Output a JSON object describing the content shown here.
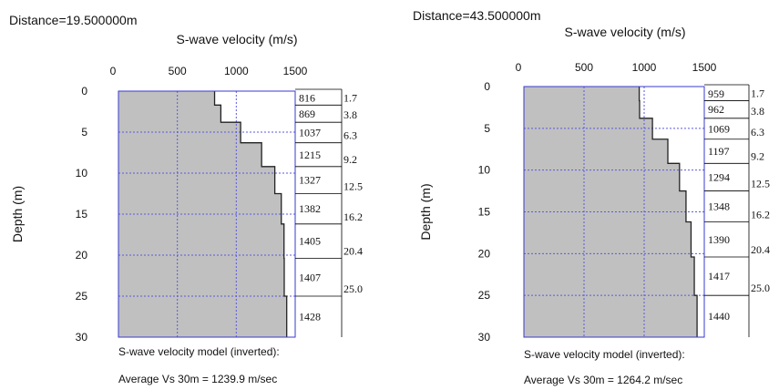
{
  "chart_data": [
    {
      "type": "step",
      "distance_label": "Distance=19.500000m",
      "title": "S-wave velocity (m/s)",
      "ylabel": "Depth (m)",
      "xlim": [
        0,
        1500
      ],
      "ylim": [
        0,
        30
      ],
      "x_ticks": [
        "0",
        "500",
        "1000",
        "1500"
      ],
      "y_ticks": [
        "0",
        "5",
        "10",
        "15",
        "20",
        "25",
        "30"
      ],
      "grid": true,
      "fill_color": "#c0c0c0",
      "axis_color": "#3a3ad0",
      "grid_color": "#5a5ae0",
      "layers": [
        {
          "top": 0.0,
          "bottom": 1.7,
          "vs": 816
        },
        {
          "top": 1.7,
          "bottom": 3.8,
          "vs": 869
        },
        {
          "top": 3.8,
          "bottom": 6.3,
          "vs": 1037
        },
        {
          "top": 6.3,
          "bottom": 9.2,
          "vs": 1215
        },
        {
          "top": 9.2,
          "bottom": 12.5,
          "vs": 1327
        },
        {
          "top": 12.5,
          "bottom": 16.2,
          "vs": 1382
        },
        {
          "top": 16.2,
          "bottom": 20.4,
          "vs": 1405
        },
        {
          "top": 20.4,
          "bottom": 25.0,
          "vs": 1407
        },
        {
          "top": 25.0,
          "bottom": 30.0,
          "vs": 1428
        }
      ],
      "velocity_labels": [
        "816",
        "869",
        "1037",
        "1215",
        "1327",
        "1382",
        "1405",
        "1407",
        "1428"
      ],
      "depth_labels": [
        "1.7",
        "3.8",
        "6.3",
        "9.2",
        "12.5",
        "16.2",
        "20.4",
        "25.0"
      ],
      "caption1": "S-wave velocity model (inverted):",
      "caption2": "Average Vs 30m = 1239.9 m/sec"
    },
    {
      "type": "step",
      "distance_label": "Distance=43.500000m",
      "title": "S-wave velocity (m/s)",
      "ylabel": "Depth (m)",
      "xlim": [
        0,
        1500
      ],
      "ylim": [
        0,
        30
      ],
      "x_ticks": [
        "0",
        "500",
        "1000",
        "1500"
      ],
      "y_ticks": [
        "0",
        "5",
        "10",
        "15",
        "20",
        "25",
        "30"
      ],
      "grid": true,
      "fill_color": "#c0c0c0",
      "axis_color": "#3a3ad0",
      "grid_color": "#5a5ae0",
      "layers": [
        {
          "top": 0.0,
          "bottom": 1.7,
          "vs": 959
        },
        {
          "top": 1.7,
          "bottom": 3.8,
          "vs": 962
        },
        {
          "top": 3.8,
          "bottom": 6.3,
          "vs": 1069
        },
        {
          "top": 6.3,
          "bottom": 9.2,
          "vs": 1197
        },
        {
          "top": 9.2,
          "bottom": 12.5,
          "vs": 1294
        },
        {
          "top": 12.5,
          "bottom": 16.2,
          "vs": 1348
        },
        {
          "top": 16.2,
          "bottom": 20.4,
          "vs": 1390
        },
        {
          "top": 20.4,
          "bottom": 25.0,
          "vs": 1417
        },
        {
          "top": 25.0,
          "bottom": 30.0,
          "vs": 1440
        }
      ],
      "velocity_labels": [
        "959",
        "962",
        "1069",
        "1197",
        "1294",
        "1348",
        "1390",
        "1417",
        "1440"
      ],
      "depth_labels": [
        "1.7",
        "3.8",
        "6.3",
        "9.2",
        "12.5",
        "16.2",
        "20.4",
        "25.0"
      ],
      "caption1": "S-wave velocity model (inverted):",
      "caption2": "Average Vs 30m = 1264.2 m/sec"
    }
  ]
}
